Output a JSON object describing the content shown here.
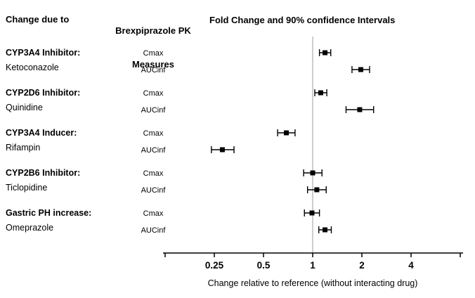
{
  "page": {
    "background": "#ffffff"
  },
  "headers": {
    "col_change": "Change due to",
    "col_pk_line1": "Brexpiprazole PK",
    "col_pk_line2": "Measures",
    "plot_title": "Fold Change and 90% confidence Intervals"
  },
  "chart_data": {
    "type": "scatter",
    "subtype": "forest-plot",
    "title": "Fold Change and 90% confidence Intervals",
    "xlabel": "Change relative to reference (without interacting drug)",
    "x_scale": "log2",
    "xlim": [
      0.125,
      8
    ],
    "x_ticks": [
      0.25,
      0.5,
      1,
      2,
      4
    ],
    "x_tick_labels": [
      "0.25",
      "0.5",
      "1",
      "2",
      "4"
    ],
    "reference_line_x": 1,
    "reference_line_color": "#b3b3b3",
    "axis_color": "#000000",
    "marker_color": "#000000",
    "grid": false,
    "legend": "none",
    "groups": [
      {
        "category": "CYP3A4 Inhibitor:",
        "drug": "Ketoconazole",
        "measures": [
          {
            "label": "Cmax",
            "est": 1.19,
            "lo": 1.1,
            "hi": 1.29
          },
          {
            "label": "AUCinf",
            "est": 1.97,
            "lo": 1.74,
            "hi": 2.23
          }
        ]
      },
      {
        "category": "CYP2D6 Inhibitor:",
        "drug": "Quinidine",
        "measures": [
          {
            "label": "Cmax",
            "est": 1.12,
            "lo": 1.03,
            "hi": 1.22
          },
          {
            "label": "AUCinf",
            "est": 1.94,
            "lo": 1.6,
            "hi": 2.36
          }
        ]
      },
      {
        "category": "CYP3A4 Inducer:",
        "drug": "Rifampin",
        "measures": [
          {
            "label": "Cmax",
            "est": 0.69,
            "lo": 0.61,
            "hi": 0.78
          },
          {
            "label": "AUCinf",
            "est": 0.28,
            "lo": 0.24,
            "hi": 0.33
          }
        ]
      },
      {
        "category": "CYP2B6 Inhibitor:",
        "drug": "Ticlopidine",
        "measures": [
          {
            "label": "Cmax",
            "est": 1.0,
            "lo": 0.88,
            "hi": 1.14
          },
          {
            "label": "AUCinf",
            "est": 1.06,
            "lo": 0.93,
            "hi": 1.21
          }
        ]
      },
      {
        "category": "Gastric PH increase:",
        "drug": "Omeprazole",
        "measures": [
          {
            "label": "Cmax",
            "est": 0.99,
            "lo": 0.89,
            "hi": 1.1
          },
          {
            "label": "AUCinf",
            "est": 1.19,
            "lo": 1.09,
            "hi": 1.3
          }
        ]
      }
    ]
  }
}
